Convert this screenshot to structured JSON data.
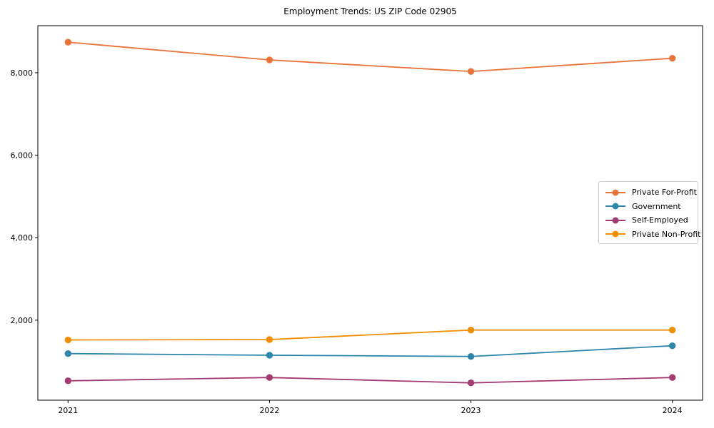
{
  "chart_data": {
    "type": "line",
    "title": "Employment Trends: US ZIP Code 02905",
    "x": [
      2021,
      2022,
      2023,
      2024
    ],
    "x_tick_labels": [
      "2021",
      "2022",
      "2023",
      "2024"
    ],
    "y_ticks": [
      {
        "value": 2000,
        "label": "2,000"
      },
      {
        "value": 4000,
        "label": "4,000"
      },
      {
        "value": 6000,
        "label": "6,000"
      },
      {
        "value": 8000,
        "label": "8,000"
      }
    ],
    "series": [
      {
        "name": "Private For-Profit",
        "color": "#E8743B",
        "values": [
          8740,
          8310,
          8030,
          8350
        ]
      },
      {
        "name": "Government",
        "color": "#2E86AB",
        "values": [
          1190,
          1150,
          1120,
          1380
        ]
      },
      {
        "name": "Self-Employed",
        "color": "#A23B72",
        "values": [
          530,
          610,
          480,
          610
        ]
      },
      {
        "name": "Private Non-Profit",
        "color": "#F18F01",
        "values": [
          1520,
          1530,
          1760,
          1760
        ]
      }
    ],
    "xlim": [
      2020.85,
      2024.15
    ],
    "ylim": [
      60,
      9140
    ],
    "grid": false,
    "legend_position": "center-right",
    "axis_color": "#000000",
    "background": "#ffffff"
  }
}
